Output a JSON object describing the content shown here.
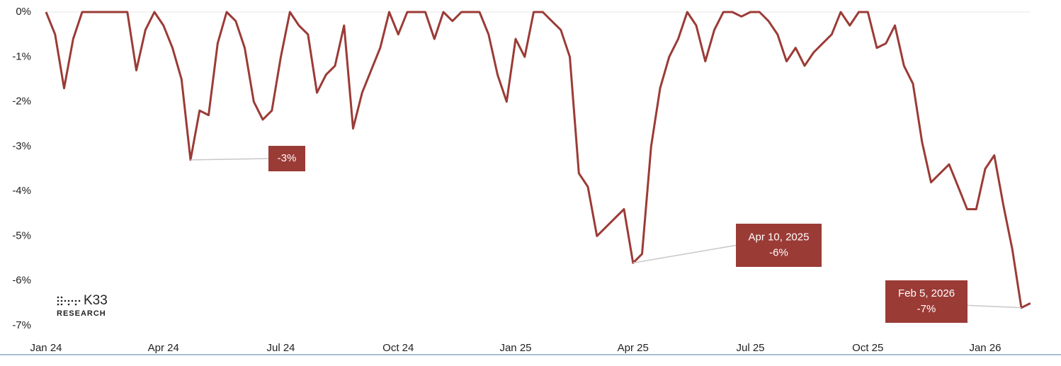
{
  "chart_data": {
    "type": "line",
    "categories": [
      "Jan 24",
      null,
      null,
      null,
      null,
      null,
      null,
      null,
      null,
      null,
      null,
      null,
      null,
      "Apr 24",
      null,
      null,
      null,
      null,
      null,
      null,
      null,
      null,
      null,
      null,
      null,
      null,
      "Jul 24",
      null,
      null,
      null,
      null,
      null,
      null,
      null,
      null,
      null,
      null,
      null,
      null,
      "Oct 24",
      null,
      null,
      null,
      null,
      null,
      null,
      null,
      null,
      null,
      null,
      null,
      null,
      "Jan 25",
      null,
      null,
      null,
      null,
      null,
      null,
      null,
      null,
      null,
      null,
      null,
      null,
      "Apr 25",
      null,
      null,
      null,
      null,
      null,
      null,
      null,
      null,
      null,
      null,
      null,
      null,
      "Jul 25",
      null,
      null,
      null,
      null,
      null,
      null,
      null,
      null,
      null,
      null,
      null,
      null,
      "Oct 25",
      null,
      null,
      null,
      null,
      null,
      null,
      null,
      null,
      null,
      null,
      null,
      null,
      "Jan 26",
      null,
      null,
      null,
      null,
      null
    ],
    "values": [
      0,
      -0.5,
      -1.7,
      -0.6,
      0,
      0,
      0,
      0,
      0,
      0,
      -1.3,
      -0.4,
      0,
      -0.3,
      -0.8,
      -1.5,
      -3.3,
      -2.2,
      -2.3,
      -0.7,
      0,
      -0.2,
      -0.8,
      -2.0,
      -2.4,
      -2.2,
      -1.0,
      0,
      -0.3,
      -0.5,
      -1.8,
      -1.4,
      -1.2,
      -0.3,
      -2.6,
      -1.8,
      -1.3,
      -0.8,
      0,
      -0.5,
      0,
      0,
      0,
      -0.6,
      0,
      -0.2,
      0,
      0,
      0,
      -0.5,
      -1.4,
      -2.0,
      -0.6,
      -1.0,
      0,
      0,
      -0.2,
      -0.4,
      -1.0,
      -3.6,
      -3.9,
      -5.0,
      -4.8,
      -4.6,
      -4.4,
      -5.6,
      -5.4,
      -3.0,
      -1.7,
      -1.0,
      -0.6,
      0,
      -0.3,
      -1.1,
      -0.4,
      0,
      0,
      -0.1,
      0,
      0,
      -0.2,
      -0.5,
      -1.1,
      -0.8,
      -1.2,
      -0.9,
      -0.7,
      -0.5,
      0,
      -0.3,
      0,
      0,
      -0.8,
      -0.7,
      -0.3,
      -1.2,
      -1.6,
      -2.9,
      -3.8,
      -3.6,
      -3.4,
      -3.9,
      -4.4,
      -4.4,
      -3.5,
      -3.2,
      -4.3,
      -5.3,
      -6.6,
      -6.5
    ],
    "color": "#9b3b36",
    "ylim": [
      -7,
      0
    ],
    "yticks": [
      {
        "value": 0,
        "label": "0%"
      },
      {
        "value": -1,
        "label": "-1%"
      },
      {
        "value": -2,
        "label": "-2%"
      },
      {
        "value": -3,
        "label": "-3%"
      },
      {
        "value": -4,
        "label": "-4%"
      },
      {
        "value": -5,
        "label": "-5%"
      },
      {
        "value": -6,
        "label": "-6%"
      },
      {
        "value": -7,
        "label": "-7%"
      }
    ],
    "annotations": [
      {
        "lines": [
          "-3%"
        ]
      },
      {
        "lines": [
          "Apr 10, 2025",
          "-6%"
        ]
      },
      {
        "lines": [
          "Feb 5, 2026",
          "-7%"
        ]
      }
    ]
  },
  "logo": {
    "name": "K33",
    "sub": "RESEARCH"
  }
}
